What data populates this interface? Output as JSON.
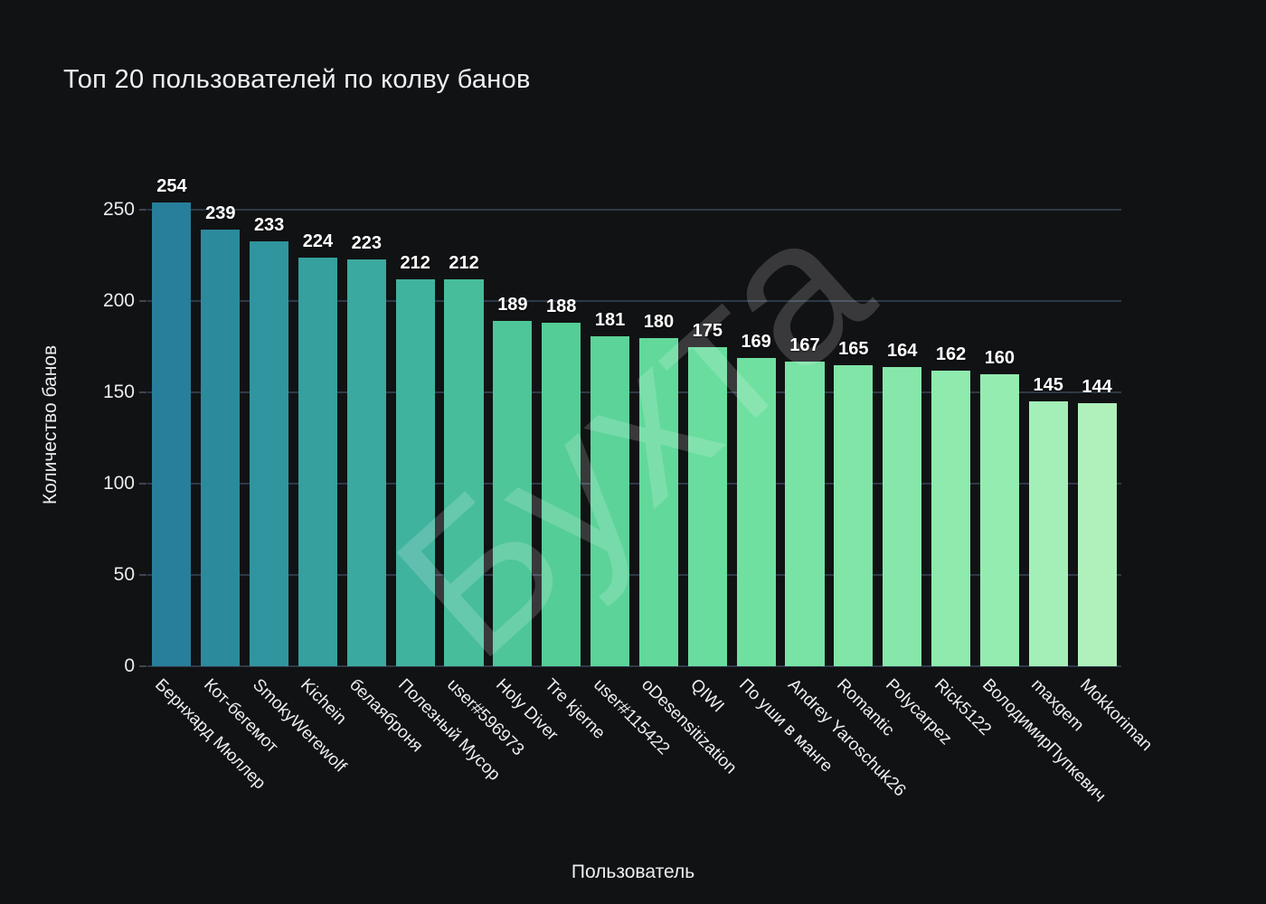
{
  "chart_data": {
    "type": "bar",
    "title": "Топ 20 пользователей по колву банов",
    "xlabel": "Пользователь",
    "ylabel": "Количество банов",
    "ylim": [
      0,
      260
    ],
    "yticks": [
      0,
      50,
      100,
      150,
      200,
      250
    ],
    "grid": true,
    "legend": "none",
    "watermark": "Бухта",
    "categories": [
      "Бернхард Мюллер",
      "Кот-бегемот",
      "SmokyWerewolf",
      "Kichein",
      "белаяброня",
      "Полезный Мусор",
      "user#596973",
      "Holy Diver",
      "Tre kjerne",
      "user#115422",
      "oDesensitization",
      "QIWI",
      "По уши в манге",
      "Andrey Yaroschuk26",
      "Romantic",
      "Polycarpez",
      "Rick5122",
      "ВолодимирПупкевич",
      "maxgem",
      "Mokkoriman"
    ],
    "values": [
      254,
      239,
      233,
      224,
      223,
      212,
      212,
      189,
      188,
      181,
      180,
      175,
      169,
      167,
      165,
      164,
      162,
      160,
      145,
      144
    ],
    "bar_colors": [
      "#287f9b",
      "#2c8a9d",
      "#30959e",
      "#35a09e",
      "#3aaa9e",
      "#40b39e",
      "#47bd9c",
      "#4ec699",
      "#55cd97",
      "#5cd399",
      "#62d99b",
      "#69dd9e",
      "#70e0a1",
      "#78e3a4",
      "#80e5a7",
      "#87e7aa",
      "#8eeaad",
      "#95ecb0",
      "#a4efb7",
      "#aff0bb"
    ]
  },
  "colors": {
    "background": "#111214",
    "title_text": "#eef0f2",
    "tick_text": "#e9ebee",
    "value_text": "#ffffff",
    "gridline": "#2e3947",
    "watermark": "rgba(255,255,255,0.17)"
  }
}
